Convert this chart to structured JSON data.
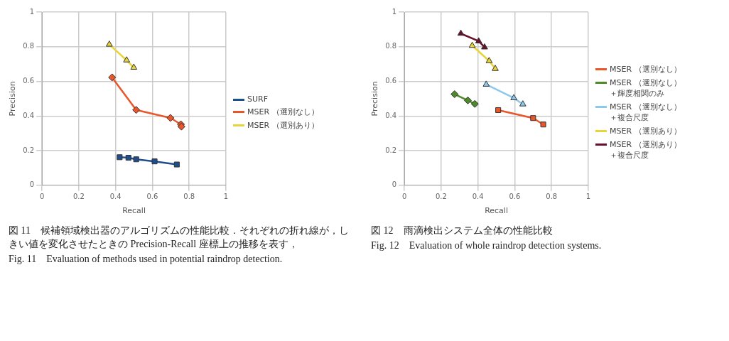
{
  "chart_data": [
    {
      "type": "line",
      "xlabel": "Recall",
      "ylabel": "Precision",
      "xlim": [
        0,
        1
      ],
      "ylim": [
        0,
        1
      ],
      "xticks": [
        0,
        0.2,
        0.4,
        0.6,
        0.8,
        1
      ],
      "yticks": [
        0,
        0.2,
        0.4,
        0.6,
        0.8,
        1
      ],
      "grid": true,
      "legend": "right",
      "annotations": [
        "図 11　候補領域検出器のアルゴリズムの性能比較．それぞれの折れ線が，しきい値を変化させたときの Precision-Recall 座標上の推移を表す，",
        "Fig. 11　Evaluation of methods used in potential raindrop detection."
      ],
      "series": [
        {
          "name": "SURF",
          "color": "#1f4e8c",
          "marker": "square",
          "x": [
            0.422,
            0.47,
            0.512,
            0.612,
            0.733
          ],
          "values": [
            0.162,
            0.159,
            0.15,
            0.138,
            0.12
          ]
        },
        {
          "name": "MSER （選別なし）",
          "color": "#e8562a",
          "marker": "diamond",
          "x": [
            0.381,
            0.512,
            0.698,
            0.755,
            0.758
          ],
          "values": [
            0.623,
            0.435,
            0.389,
            0.352,
            0.339
          ]
        },
        {
          "name": "MSER （選別あり）",
          "color": "#e8d43a",
          "marker": "triangle",
          "x": [
            0.366,
            0.46,
            0.499
          ],
          "values": [
            0.813,
            0.722,
            0.68
          ]
        }
      ]
    },
    {
      "type": "line",
      "xlabel": "Recall",
      "ylabel": "Precision",
      "xlim": [
        0,
        1
      ],
      "ylim": [
        0,
        1
      ],
      "xticks": [
        0,
        0.2,
        0.4,
        0.6,
        0.8,
        1
      ],
      "yticks": [
        0,
        0.2,
        0.4,
        0.6,
        0.8,
        1
      ],
      "grid": true,
      "legend": "right",
      "annotations": [
        "図 12　雨滴検出システム全体の性能比較",
        "Fig. 12　Evaluation of whole raindrop detection systems."
      ],
      "series": [
        {
          "name": "MSER （選別なし）",
          "color": "#e8562a",
          "marker": "square",
          "x": [
            0.51,
            0.7,
            0.755
          ],
          "values": [
            0.434,
            0.388,
            0.351
          ]
        },
        {
          "name": "MSER （選別なし）＋輝度相関のみ",
          "color": "#4e8a2a",
          "marker": "diamond",
          "x": [
            0.273,
            0.345,
            0.383
          ],
          "values": [
            0.526,
            0.49,
            0.47
          ]
        },
        {
          "name": "MSER （選別なし）＋複合尺度",
          "color": "#8ec8ec",
          "marker": "triangle",
          "x": [
            0.445,
            0.595,
            0.644
          ],
          "values": [
            0.582,
            0.504,
            0.468
          ]
        },
        {
          "name": "MSER （選別あり）",
          "color": "#e8d43a",
          "marker": "triangle",
          "x": [
            0.369,
            0.461,
            0.494
          ],
          "values": [
            0.806,
            0.718,
            0.673
          ]
        },
        {
          "name": "MSER （選別あり）＋複合尺度",
          "color": "#6b0f2a",
          "marker": "triangle",
          "x": [
            0.307,
            0.404,
            0.436
          ],
          "values": [
            0.876,
            0.832,
            0.797
          ]
        }
      ]
    }
  ]
}
